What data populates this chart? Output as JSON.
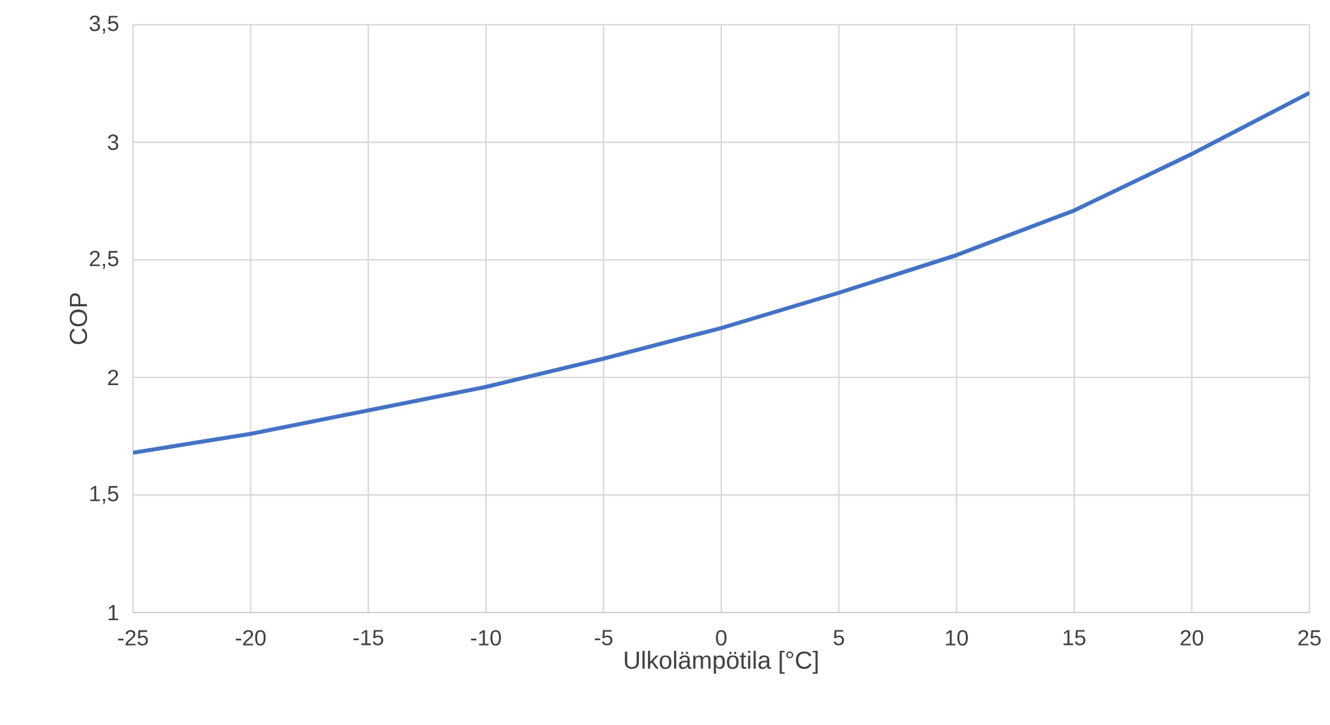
{
  "chart_data": {
    "type": "line",
    "xlabel": "Ulkolämpötila [°C]",
    "ylabel": "COP",
    "x": [
      -25,
      -20,
      -15,
      -10,
      -5,
      0,
      5,
      10,
      15,
      20,
      25
    ],
    "series": [
      {
        "color": "#4472c4",
        "values": [
          1.68,
          1.76,
          1.86,
          1.96,
          2.08,
          2.21,
          2.36,
          2.52,
          2.71,
          2.95,
          3.21
        ]
      }
    ],
    "xlim": [
      -25,
      25
    ],
    "xticks": [
      -25,
      -20,
      -15,
      -10,
      -5,
      0,
      5,
      10,
      15,
      20,
      25
    ],
    "ylim": [
      1,
      3.5
    ],
    "yticks": [
      1,
      {
        "value": 1.5,
        "label": "1,5"
      },
      2,
      {
        "value": 2.5,
        "label": "2,5"
      },
      3,
      {
        "value": 3.5,
        "label": "3,5"
      }
    ],
    "grid": true,
    "marker": "none",
    "line_style": "solid"
  }
}
